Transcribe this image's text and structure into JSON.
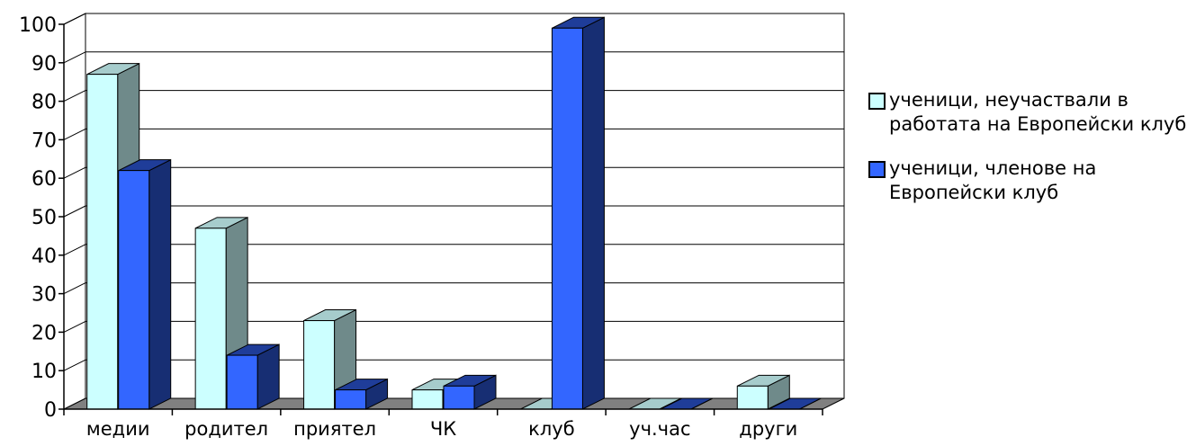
{
  "chart_data": {
    "type": "bar",
    "categories": [
      "медии",
      "родител",
      "приятел",
      "ЧК",
      "клуб",
      "уч.час",
      "други"
    ],
    "series": [
      {
        "name": "ученици, неучаствали в работата на Европейски клуб",
        "color": "#ccffff",
        "values": [
          87,
          47,
          23,
          5,
          0,
          0,
          6
        ]
      },
      {
        "name": "ученици, членове на Европейски клуб",
        "color": "#3366ff",
        "values": [
          62,
          14,
          5,
          6,
          99,
          0,
          0
        ]
      }
    ],
    "yticks": [
      "0",
      "10",
      "20",
      "30",
      "40",
      "50",
      "60",
      "70",
      "80",
      "90",
      "100"
    ],
    "ylim": [
      0,
      100
    ],
    "grid": true,
    "three_d": true,
    "legend_position": "right"
  }
}
